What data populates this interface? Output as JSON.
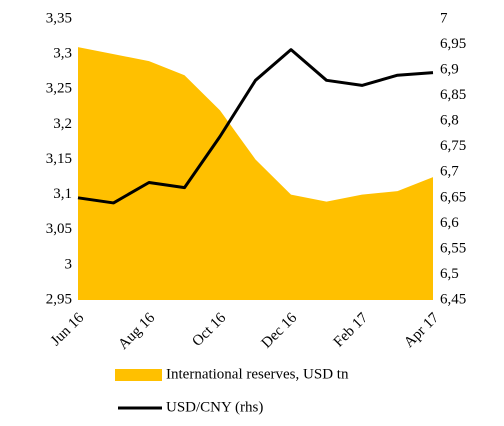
{
  "chart_data": {
    "type": "area-line",
    "categories": [
      "Jun 16",
      null,
      "Aug 16",
      null,
      "Oct 16",
      null,
      "Dec 16",
      null,
      "Feb 17",
      null,
      "Apr 17"
    ],
    "series": [
      {
        "name": "International reserves, USD tn",
        "type": "area",
        "color": "#ffc000",
        "values": [
          3.31,
          3.3,
          3.29,
          3.27,
          3.22,
          3.15,
          3.1,
          3.09,
          3.1,
          3.105,
          3.125
        ]
      },
      {
        "name": "USD/CNY (rhs)",
        "type": "line",
        "axis": "y2",
        "color": "#000000",
        "values": [
          6.65,
          6.64,
          6.68,
          6.67,
          6.77,
          6.88,
          6.94,
          6.88,
          6.87,
          6.89,
          6.895
        ]
      }
    ],
    "ylim": [
      2.95,
      3.35
    ],
    "yticks": [
      {
        "value": 2.95,
        "label": "2,95"
      },
      {
        "value": 3.0,
        "label": "3"
      },
      {
        "value": 3.05,
        "label": "3,05"
      },
      {
        "value": 3.1,
        "label": "3,1"
      },
      {
        "value": 3.15,
        "label": "3,15"
      },
      {
        "value": 3.2,
        "label": "3,2"
      },
      {
        "value": 3.25,
        "label": "3,25"
      },
      {
        "value": 3.3,
        "label": "3,3"
      },
      {
        "value": 3.35,
        "label": "3,35"
      }
    ],
    "y2lim": [
      6.45,
      7
    ],
    "y2ticks": [
      {
        "value": 6.45,
        "label": "6,45"
      },
      {
        "value": 6.5,
        "label": "6,5"
      },
      {
        "value": 6.55,
        "label": "6,55"
      },
      {
        "value": 6.6,
        "label": "6,6"
      },
      {
        "value": 6.65,
        "label": "6,65"
      },
      {
        "value": 6.7,
        "label": "6,7"
      },
      {
        "value": 6.75,
        "label": "6,75"
      },
      {
        "value": 6.8,
        "label": "6,8"
      },
      {
        "value": 6.85,
        "label": "6,85"
      },
      {
        "value": 6.9,
        "label": "6,9"
      },
      {
        "value": 6.95,
        "label": "6,95"
      },
      7
    ],
    "grid": false,
    "legend": "bottom"
  }
}
